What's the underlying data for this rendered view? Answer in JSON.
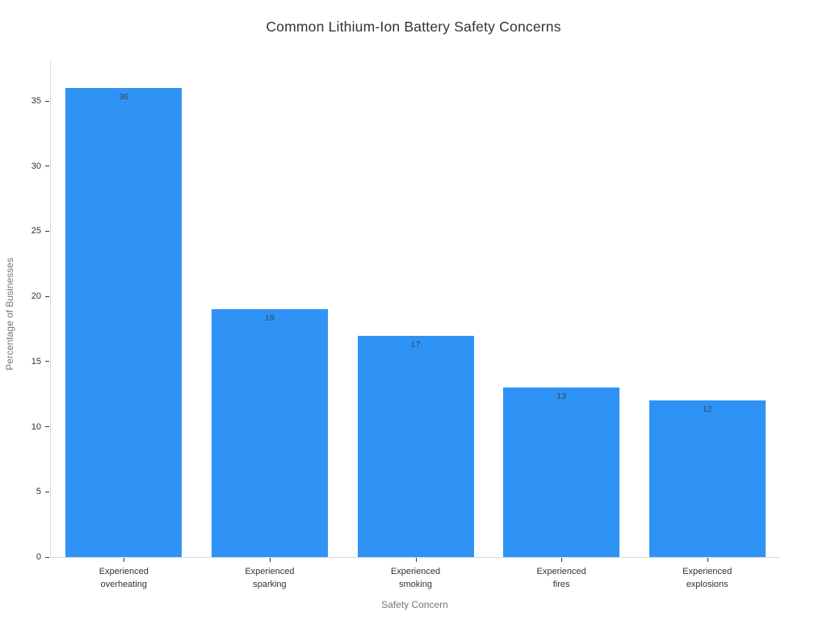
{
  "chart_data": {
    "type": "bar",
    "title": "Common Lithium-Ion Battery Safety Concerns",
    "xlabel": "Safety Concern",
    "ylabel": "Percentage of Businesses",
    "categories": [
      "Experienced\noverheating",
      "Experienced\nsparking",
      "Experienced\nsmoking",
      "Experienced\nfires",
      "Experienced\nexplosions"
    ],
    "values": [
      36,
      19,
      17,
      13,
      12
    ],
    "bar_labels": [
      "36",
      "19",
      "17",
      "13",
      "12"
    ],
    "yticks": [
      0,
      5,
      10,
      15,
      20,
      25,
      30,
      35
    ],
    "ylim": [
      0,
      38.1
    ],
    "grid": false,
    "legend": false,
    "colors": {
      "bar": "#2f93f5",
      "title_text": "#333333",
      "tick_label": "#333333",
      "axis_title": "#777777",
      "spine": "#d9d9d9",
      "tick_mark": "#333333",
      "value_label": "#36485a",
      "background": "#ffffff"
    }
  }
}
